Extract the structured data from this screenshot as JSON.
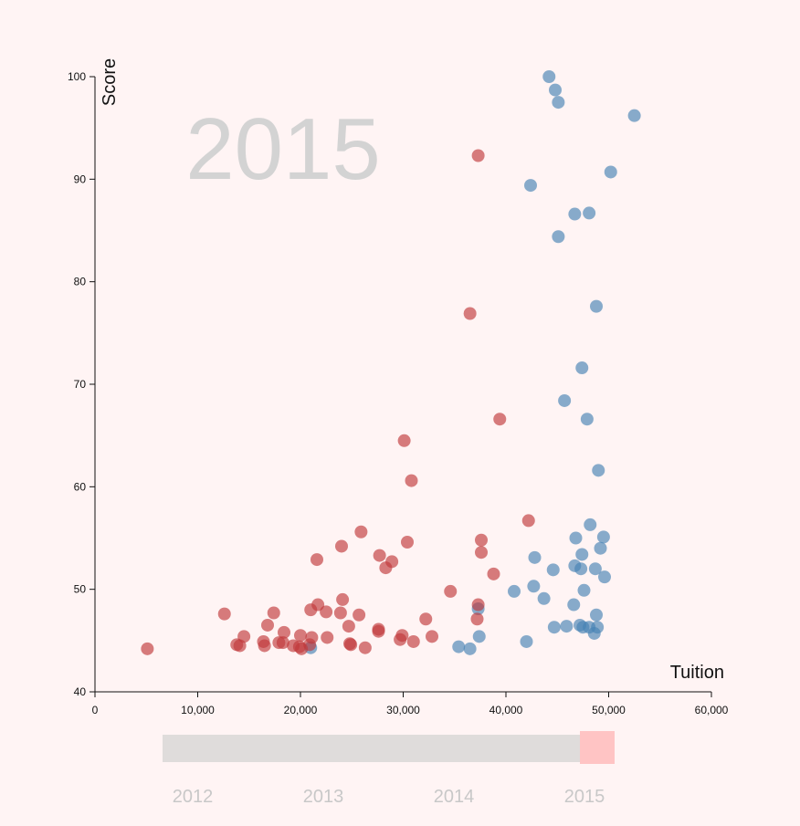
{
  "chart_data": {
    "type": "scatter",
    "title": "",
    "xlabel": "Tuition",
    "ylabel": "Score",
    "xlim": [
      0,
      60000
    ],
    "ylim": [
      40,
      100
    ],
    "xticks": [
      "0",
      "10,000",
      "20,000",
      "30,000",
      "40,000",
      "50,000",
      "60,000"
    ],
    "yticks": [
      "40",
      "50",
      "60",
      "70",
      "80",
      "90",
      "100"
    ],
    "grid": false,
    "current_year": "2015",
    "series": [
      {
        "color": "#4682b4",
        "points": [
          [
            44200,
            100
          ],
          [
            44800,
            98.7
          ],
          [
            45100,
            97.5
          ],
          [
            52500,
            96.2
          ],
          [
            50200,
            90.7
          ],
          [
            42400,
            89.4
          ],
          [
            46700,
            86.6
          ],
          [
            48100,
            86.7
          ],
          [
            45100,
            84.4
          ],
          [
            48800,
            77.6
          ],
          [
            47400,
            71.6
          ],
          [
            45700,
            68.4
          ],
          [
            47900,
            66.6
          ],
          [
            49000,
            61.6
          ],
          [
            48200,
            56.3
          ],
          [
            49500,
            55.1
          ],
          [
            46800,
            55.0
          ],
          [
            49200,
            54.0
          ],
          [
            47400,
            53.4
          ],
          [
            42800,
            53.1
          ],
          [
            46700,
            52.3
          ],
          [
            47300,
            52.0
          ],
          [
            48700,
            52.0
          ],
          [
            44600,
            51.9
          ],
          [
            49600,
            51.2
          ],
          [
            42700,
            50.3
          ],
          [
            47600,
            49.9
          ],
          [
            40800,
            49.8
          ],
          [
            43700,
            49.1
          ],
          [
            46600,
            48.5
          ],
          [
            37300,
            48.1
          ],
          [
            48800,
            47.5
          ],
          [
            47200,
            46.5
          ],
          [
            47500,
            46.3
          ],
          [
            45900,
            46.4
          ],
          [
            48100,
            46.3
          ],
          [
            44700,
            46.3
          ],
          [
            48900,
            46.3
          ],
          [
            48600,
            45.7
          ],
          [
            37400,
            45.4
          ],
          [
            42000,
            44.9
          ],
          [
            35400,
            44.4
          ],
          [
            36500,
            44.2
          ],
          [
            21000,
            44.3
          ]
        ]
      },
      {
        "color": "#c0393b",
        "points": [
          [
            37300,
            92.3
          ],
          [
            36500,
            76.9
          ],
          [
            39400,
            66.6
          ],
          [
            30100,
            64.5
          ],
          [
            30800,
            60.6
          ],
          [
            42200,
            56.7
          ],
          [
            25900,
            55.6
          ],
          [
            37600,
            54.8
          ],
          [
            30400,
            54.6
          ],
          [
            24000,
            54.2
          ],
          [
            37600,
            53.6
          ],
          [
            27700,
            53.3
          ],
          [
            21600,
            52.9
          ],
          [
            28900,
            52.7
          ],
          [
            28300,
            52.1
          ],
          [
            38800,
            51.5
          ],
          [
            34600,
            49.8
          ],
          [
            24100,
            49.0
          ],
          [
            21700,
            48.5
          ],
          [
            37300,
            48.5
          ],
          [
            21000,
            48.0
          ],
          [
            22500,
            47.8
          ],
          [
            12600,
            47.6
          ],
          [
            17400,
            47.7
          ],
          [
            23900,
            47.7
          ],
          [
            25700,
            47.5
          ],
          [
            37200,
            47.1
          ],
          [
            32200,
            47.1
          ],
          [
            16800,
            46.5
          ],
          [
            24700,
            46.4
          ],
          [
            27600,
            46.1
          ],
          [
            27600,
            45.9
          ],
          [
            18400,
            45.8
          ],
          [
            29900,
            45.5
          ],
          [
            20000,
            45.5
          ],
          [
            32800,
            45.4
          ],
          [
            22600,
            45.3
          ],
          [
            14500,
            45.4
          ],
          [
            21100,
            45.3
          ],
          [
            29700,
            45.1
          ],
          [
            31000,
            44.9
          ],
          [
            16400,
            44.9
          ],
          [
            17900,
            44.8
          ],
          [
            18300,
            44.8
          ],
          [
            24800,
            44.7
          ],
          [
            24900,
            44.6
          ],
          [
            13800,
            44.6
          ],
          [
            14100,
            44.5
          ],
          [
            20900,
            44.6
          ],
          [
            19300,
            44.5
          ],
          [
            19900,
            44.4
          ],
          [
            26300,
            44.3
          ],
          [
            16500,
            44.5
          ],
          [
            20100,
            44.2
          ],
          [
            5100,
            44.2
          ]
        ]
      }
    ]
  },
  "slider": {
    "years": [
      "2012",
      "2013",
      "2014",
      "2015"
    ],
    "selected": "2015"
  }
}
